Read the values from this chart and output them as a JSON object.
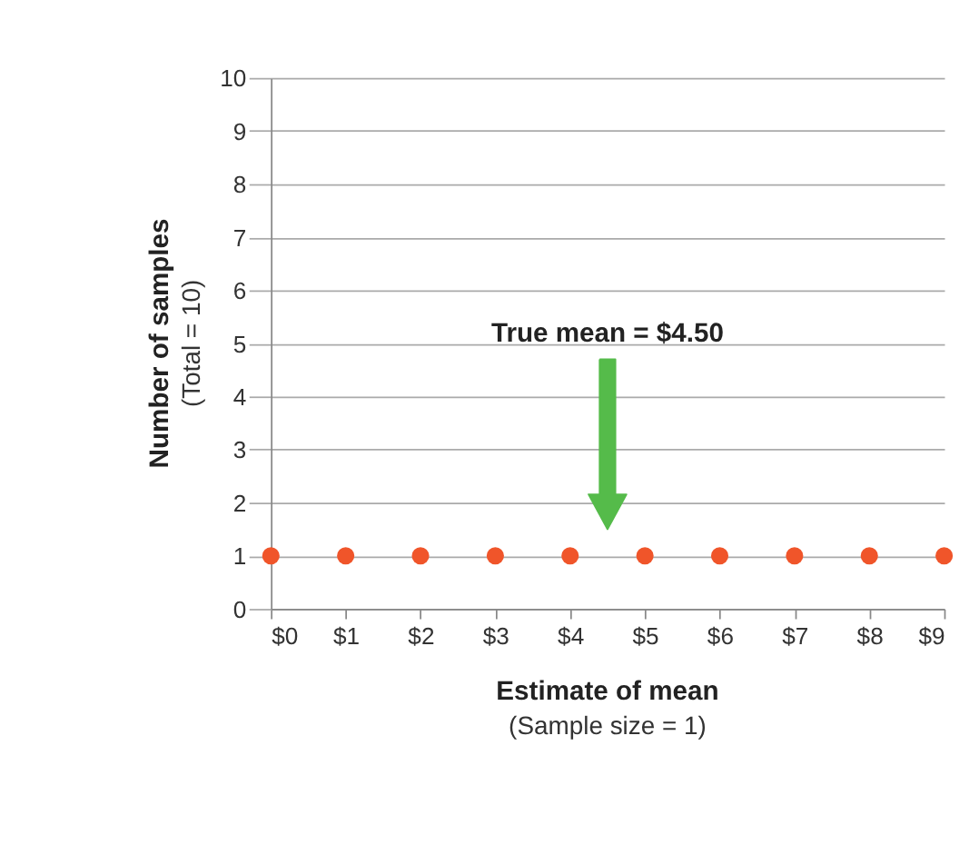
{
  "chart_data": {
    "type": "scatter",
    "x": [
      0,
      1,
      2,
      3,
      4,
      5,
      6,
      7,
      8,
      9
    ],
    "series": [
      {
        "color": "#f0552a",
        "values": [
          1,
          1,
          1,
          1,
          1,
          1,
          1,
          1,
          1,
          1
        ]
      }
    ],
    "xlim": [
      0,
      9
    ],
    "xticks": [
      {
        "value": 0,
        "label": "$0"
      },
      {
        "value": 1,
        "label": "$1"
      },
      {
        "value": 2,
        "label": "$2"
      },
      {
        "value": 3,
        "label": "$3"
      },
      {
        "value": 4,
        "label": "$4"
      },
      {
        "value": 5,
        "label": "$5"
      },
      {
        "value": 6,
        "label": "$6"
      },
      {
        "value": 7,
        "label": "$7"
      },
      {
        "value": 8,
        "label": "$8"
      },
      {
        "value": 9,
        "label": "$9"
      }
    ],
    "ylim": [
      0,
      10
    ],
    "yticks": [
      0,
      1,
      2,
      3,
      4,
      5,
      6,
      7,
      8,
      9,
      10
    ],
    "xlabel": "Estimate of mean",
    "ylabel": "Number of samples",
    "annotations": [
      "True mean  =  $4.50",
      "(Sample size = 1)",
      "(Total = 10)"
    ],
    "grid": "y",
    "marker": "circle"
  }
}
